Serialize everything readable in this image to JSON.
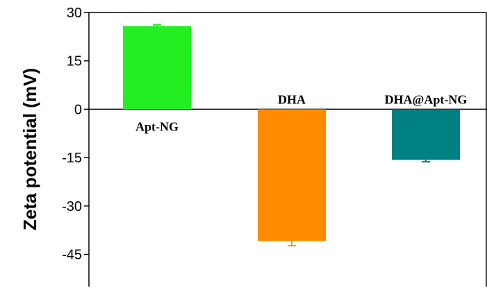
{
  "chart_data": {
    "type": "bar",
    "categories": [
      "Apt-NG",
      "DHA",
      "DHA@Apt-NG"
    ],
    "values": [
      25.8,
      -40.8,
      -15.7
    ],
    "errors": [
      0.4,
      1.5,
      0.6
    ],
    "colors": [
      "#22ee22",
      "#ff8c00",
      "#008080"
    ],
    "title": "",
    "xlabel": "",
    "ylabel": "Zeta potential (mV)",
    "ylim": [
      -55,
      30
    ],
    "yticks": [
      30,
      15,
      0,
      -15,
      -30,
      -45
    ],
    "grid": false
  }
}
